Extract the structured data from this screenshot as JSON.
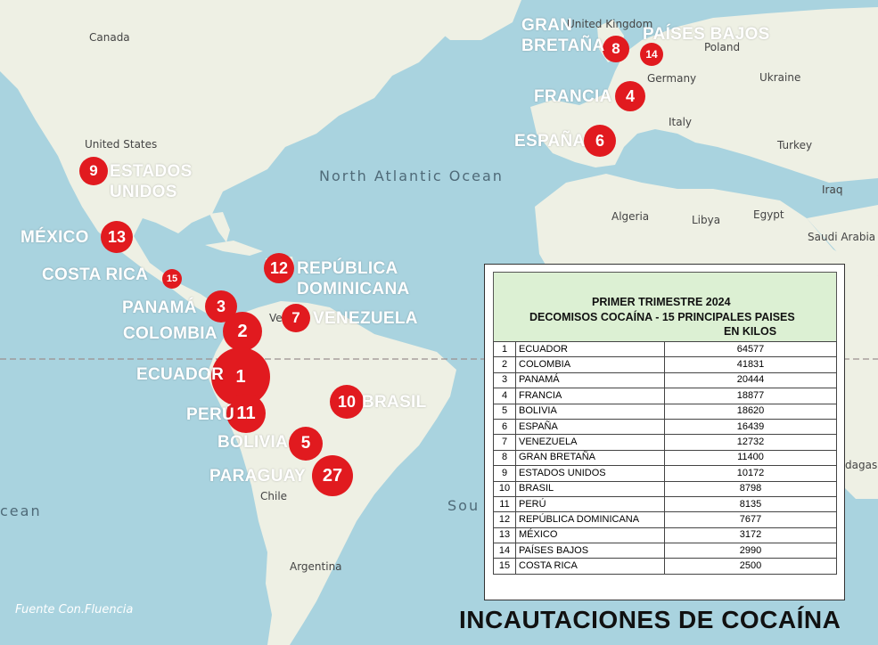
{
  "map_labels": {
    "canada": "Canada",
    "united_states": "United States",
    "north_atlantic": "North Atlantic Ocean",
    "united_kingdom": "United Kingdom",
    "poland": "Poland",
    "germany": "Germany",
    "ukraine": "Ukraine",
    "italy": "Italy",
    "turkey": "Turkey",
    "iraq": "Iraq",
    "algeria": "Algeria",
    "libya": "Libya",
    "egypt": "Egypt",
    "saudi_arabia": "Saudi Arabia",
    "chile": "Chile",
    "argentina": "Argentina",
    "ocean_left": "cean",
    "ocean_south": "Sou",
    "madagascar": "dagas",
    "venezuela_fragment": "Ve"
  },
  "countries": [
    {
      "key": "ecuador",
      "label": "ECUADOR",
      "rank": "1"
    },
    {
      "key": "colombia",
      "label": "COLOMBIA",
      "rank": "2"
    },
    {
      "key": "panama",
      "label": "PANAMÁ",
      "rank": "3"
    },
    {
      "key": "francia",
      "label": "FRANCIA",
      "rank": "4"
    },
    {
      "key": "bolivia",
      "label": "BOLIVIA",
      "rank": "5"
    },
    {
      "key": "espana",
      "label": "ESPAÑA",
      "rank": "6"
    },
    {
      "key": "venezuela",
      "label": "VENEZUELA",
      "rank": "7"
    },
    {
      "key": "gran_bretana",
      "label": "GRAN BRETAÑA",
      "rank": "8"
    },
    {
      "key": "estados_unidos",
      "label": "ESTADOS UNIDOS",
      "rank": "9"
    },
    {
      "key": "brasil",
      "label": "BRASIL",
      "rank": "10"
    },
    {
      "key": "peru",
      "label": "PERÚ",
      "rank": "11"
    },
    {
      "key": "rep_dominicana",
      "label": "REPÚBLICA DOMINICANA",
      "rank": "12"
    },
    {
      "key": "mexico",
      "label": "MÉXICO",
      "rank": "13"
    },
    {
      "key": "paises_bajos",
      "label": "PAÍSES BAJOS",
      "rank": "14"
    },
    {
      "key": "costa_rica",
      "label": "COSTA RICA",
      "rank": "15"
    },
    {
      "key": "paraguay",
      "label": "PARAGUAY",
      "rank": "27"
    }
  ],
  "table": {
    "title": "PRIMER TRIMESTRE 2024",
    "subtitle": "DECOMISOS COCAÍNA  -  15 PRINCIPALES PAISES",
    "unit": "EN KILOS",
    "rows": [
      {
        "rank": "1",
        "country": "ECUADOR",
        "kilos": "64577"
      },
      {
        "rank": "2",
        "country": "COLOMBIA",
        "kilos": "41831"
      },
      {
        "rank": "3",
        "country": "PANAMÁ",
        "kilos": "20444"
      },
      {
        "rank": "4",
        "country": "FRANCIA",
        "kilos": "18877"
      },
      {
        "rank": "5",
        "country": "BOLIVIA",
        "kilos": "18620"
      },
      {
        "rank": "6",
        "country": "ESPAÑA",
        "kilos": "16439"
      },
      {
        "rank": "7",
        "country": "VENEZUELA",
        "kilos": "12732"
      },
      {
        "rank": "8",
        "country": "GRAN BRETAÑA",
        "kilos": "11400"
      },
      {
        "rank": "9",
        "country": "ESTADOS UNIDOS",
        "kilos": "10172"
      },
      {
        "rank": "10",
        "country": "BRASIL",
        "kilos": "8798"
      },
      {
        "rank": "11",
        "country": "PERÚ",
        "kilos": "8135"
      },
      {
        "rank": "12",
        "country": "REPÚBLICA DOMINICANA",
        "kilos": "7677"
      },
      {
        "rank": "13",
        "country": "MÉXICO",
        "kilos": "3172"
      },
      {
        "rank": "14",
        "country": "PAÍSES BAJOS",
        "kilos": "2990"
      },
      {
        "rank": "15",
        "country": "COSTA RICA",
        "kilos": "2500"
      }
    ]
  },
  "source": "Fuente Con.Fluencia",
  "main_title": "INCAUTACIONES DE COCAÍNA",
  "colors": {
    "marker": "#e11a1f",
    "land": "#eef0e4",
    "ocean": "#a9d3df",
    "table_header": "#dcf0d3"
  }
}
